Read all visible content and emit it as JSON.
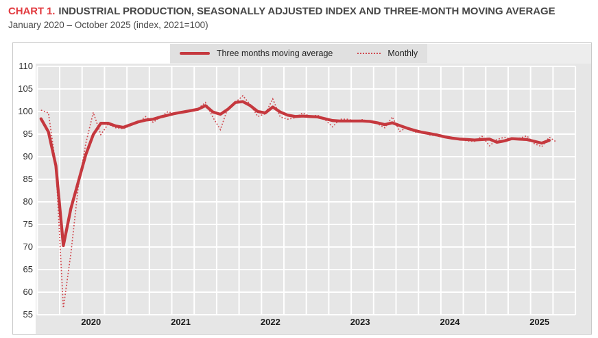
{
  "header": {
    "chart_label": "CHART 1.",
    "title": "INDUSTRIAL PRODUCTION, SEASONALLY ADJUSTED INDEX AND THREE-MONTH MOVING AVERAGE",
    "subtitle": "January 2020 – October 2025 (index, 2021=100)"
  },
  "legend": {
    "items": [
      {
        "label": "Three months moving average",
        "style": "solid"
      },
      {
        "label": "Monthly",
        "style": "dotted"
      }
    ]
  },
  "colors": {
    "title_accent": "#e23a3f",
    "title_text": "#474747",
    "line_solid": "#c5383e",
    "line_dotted": "#d0494f",
    "plot_panel": "#e6e6e6",
    "legend_strip": "#e0e0e0",
    "gridline": "#ffffff",
    "axis_text": "#2e2e2e",
    "block_border": "#c9c9c9"
  },
  "chart_data": {
    "type": "line",
    "title": "Industrial production, seasonally adjusted index and three-month moving average",
    "x_start": "2020-01",
    "x_end": "2025-10",
    "frequency": "monthly",
    "x_axis_months_shown": 72,
    "gridline_every_months": 3,
    "x_year_labels": [
      "2020",
      "2021",
      "2022",
      "2023",
      "2024",
      "2025"
    ],
    "y_ticks": [
      55,
      60,
      65,
      70,
      75,
      80,
      85,
      90,
      95,
      100,
      105,
      110
    ],
    "ylim": [
      55,
      110
    ],
    "grid": true,
    "legend_position": "top-center",
    "series": [
      {
        "name": "Monthly",
        "style": "dotted",
        "start_index": 0,
        "values": [
          100.3,
          99.7,
          88.0,
          56.5,
          68.5,
          83.5,
          93.0,
          99.8,
          94.9,
          97.2,
          96.4,
          96.2,
          96.9,
          97.6,
          98.9,
          97.6,
          98.8,
          100.0,
          99.4,
          100.0,
          100.4,
          100.6,
          102.0,
          98.7,
          96.0,
          100.8,
          102.0,
          103.5,
          101.5,
          98.9,
          99.5,
          102.8,
          98.8,
          98.3,
          98.6,
          99.7,
          98.9,
          99.2,
          98.2,
          96.6,
          98.3,
          98.3,
          97.9,
          98.2,
          97.8,
          97.3,
          96.4,
          98.8,
          95.6,
          96.5,
          95.4,
          95.6,
          94.8,
          94.6,
          94.3,
          94.0,
          93.9,
          93.5,
          93.4,
          94.5,
          92.4,
          93.8,
          94.3,
          93.8,
          94.1,
          94.6,
          92.9,
          92.2,
          94.3,
          93.2
        ]
      },
      {
        "name": "Three months moving average",
        "style": "solid",
        "start_index": 0,
        "values": [
          98.4,
          95.5,
          88.0,
          70.3,
          78.5,
          84.5,
          90.5,
          94.9,
          97.4,
          97.4,
          96.8,
          96.5,
          97.1,
          97.7,
          98.1,
          98.3,
          98.8,
          99.2,
          99.6,
          99.9,
          100.2,
          100.5,
          101.3,
          99.9,
          99.4,
          100.5,
          102.0,
          102.2,
          101.3,
          100.0,
          99.7,
          101.0,
          99.9,
          99.2,
          98.9,
          99.0,
          98.9,
          98.8,
          98.4,
          98.0,
          97.9,
          97.9,
          97.9,
          97.9,
          97.8,
          97.5,
          97.1,
          97.5,
          96.9,
          96.3,
          95.8,
          95.4,
          95.1,
          94.8,
          94.4,
          94.1,
          93.9,
          93.8,
          93.7,
          93.8,
          93.9,
          93.2,
          93.5,
          94.0,
          93.9,
          93.8,
          93.4,
          93.0,
          93.6
        ]
      }
    ]
  }
}
